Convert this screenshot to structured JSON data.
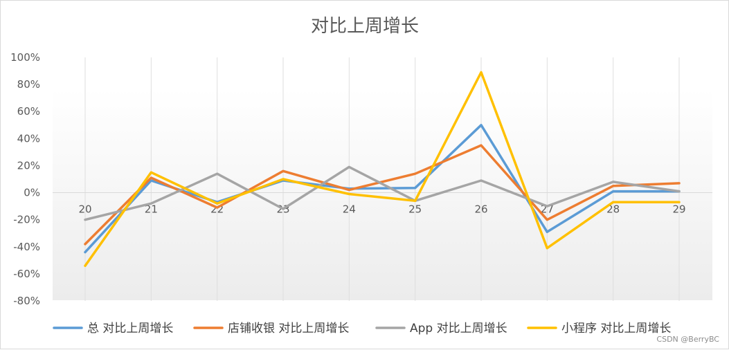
{
  "chart_data": {
    "type": "line",
    "title": "对比上周增长",
    "xlabel": "",
    "ylabel": "",
    "categories": [
      "20",
      "21",
      "22",
      "23",
      "24",
      "25",
      "26",
      "27",
      "28",
      "29"
    ],
    "ylim": [
      -0.8,
      1.0
    ],
    "yticks": [
      1.0,
      0.8,
      0.6,
      0.4,
      0.2,
      0,
      -0.2,
      -0.4,
      -0.6,
      -0.8
    ],
    "ytick_labels": [
      "100%",
      "80%",
      "60%",
      "40%",
      "20%",
      "0%",
      "-20%",
      "-40%",
      "-60%",
      "-80%"
    ],
    "grid": "vertical",
    "legend_position": "bottom",
    "series": [
      {
        "name": "总 对比上周增长",
        "color": "#5b9bd5",
        "values": [
          -0.44,
          0.09,
          -0.07,
          0.09,
          0.03,
          0.035,
          0.5,
          -0.29,
          0.01,
          0.01
        ]
      },
      {
        "name": "店铺收银 对比上周增长",
        "color": "#ed7d31",
        "values": [
          -0.38,
          0.11,
          -0.11,
          0.16,
          0.02,
          0.14,
          0.35,
          -0.2,
          0.05,
          0.07
        ]
      },
      {
        "name": "App 对比上周增长",
        "color": "#a5a5a5",
        "values": [
          -0.2,
          -0.08,
          0.14,
          -0.12,
          0.19,
          -0.06,
          0.09,
          -0.1,
          0.08,
          0.01
        ]
      },
      {
        "name": "小程序 对比上周增长",
        "color": "#ffc000",
        "values": [
          -0.54,
          0.15,
          -0.08,
          0.1,
          -0.01,
          -0.06,
          0.89,
          -0.41,
          -0.07,
          -0.07
        ]
      }
    ]
  },
  "watermark": "CSDN @BerryBC"
}
